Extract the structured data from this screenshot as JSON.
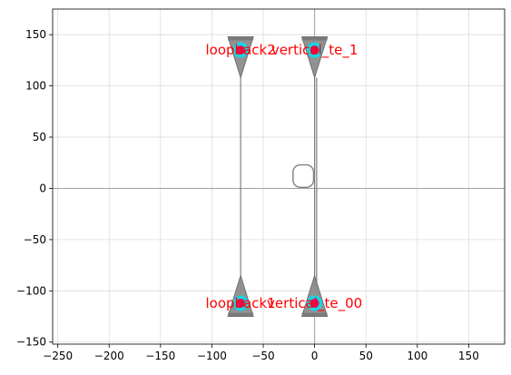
{
  "chart_data": {
    "type": "scatter",
    "title": "",
    "xlabel": "",
    "ylabel": "",
    "xlim": [
      -255,
      185
    ],
    "ylim": [
      -152,
      175
    ],
    "xticks": [
      -250,
      -200,
      -150,
      -100,
      -50,
      0,
      50,
      100,
      150
    ],
    "yticks": [
      -150,
      -100,
      -50,
      0,
      50,
      100,
      150
    ],
    "grid": true,
    "legend": "none",
    "axes_lines": {
      "x_zero": true,
      "y_zero": true
    },
    "colors": {
      "waveguide": "#808080",
      "taper_fill": "#8c8c8c",
      "marker_cyan": "#17d6e6",
      "marker_dot": "#e0115f",
      "label": "#ff0000",
      "grid": "#dcdcdc"
    },
    "ports": [
      {
        "x": -72,
        "y": 135,
        "direction": "down",
        "label": "loopback2"
      },
      {
        "x": 0,
        "y": 135,
        "direction": "down",
        "label": "vertical_te_1"
      },
      {
        "x": -72,
        "y": -112,
        "direction": "up",
        "label": "loopback1"
      },
      {
        "x": 0,
        "y": -112,
        "direction": "up",
        "label": "vertical_te_00"
      }
    ],
    "waveguides": [
      {
        "x": [
          -72,
          -72
        ],
        "y": [
          -103,
          108
        ]
      },
      {
        "x": [
          0,
          0
        ],
        "y": [
          -103,
          108
        ]
      },
      {
        "x": [
          2,
          2
        ],
        "y": [
          -103,
          108
        ]
      }
    ],
    "loop": {
      "cx": -11,
      "cy": 12,
      "w": 20,
      "h": 22,
      "gap_x": -1
    }
  }
}
